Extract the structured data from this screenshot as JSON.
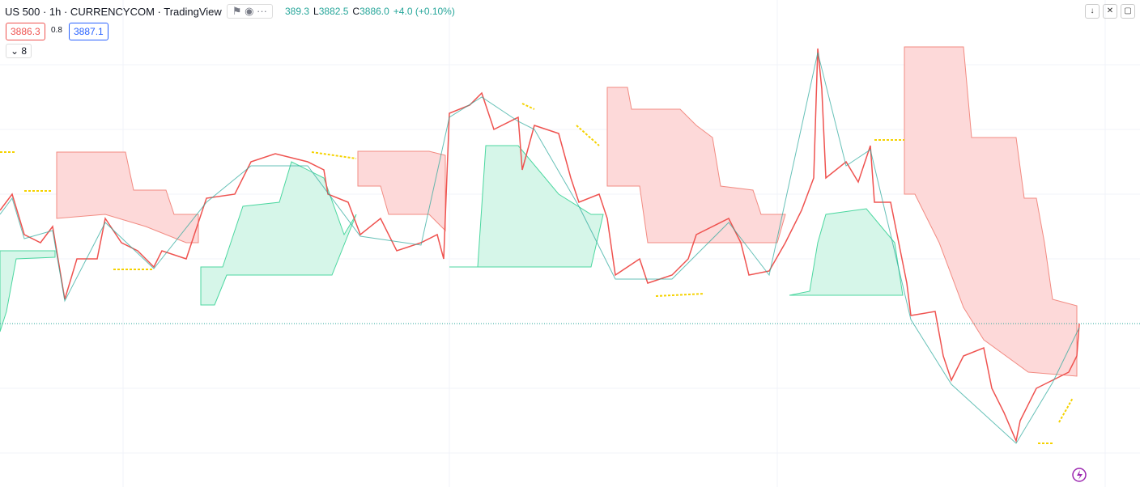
{
  "header": {
    "title": "US 500 · 1h · CURRENCYCOM · TradingView",
    "ohlc": [
      {
        "label": "",
        "value": "389.3"
      },
      {
        "label": "L",
        "value": "3882.5"
      },
      {
        "label": "C",
        "value": "3886.0"
      }
    ],
    "change": "+4.0 (+0.10%)"
  },
  "badges": {
    "sell": "3886.3",
    "spread": "0.8",
    "buy": "3887.1",
    "indicators": "8"
  }
}
